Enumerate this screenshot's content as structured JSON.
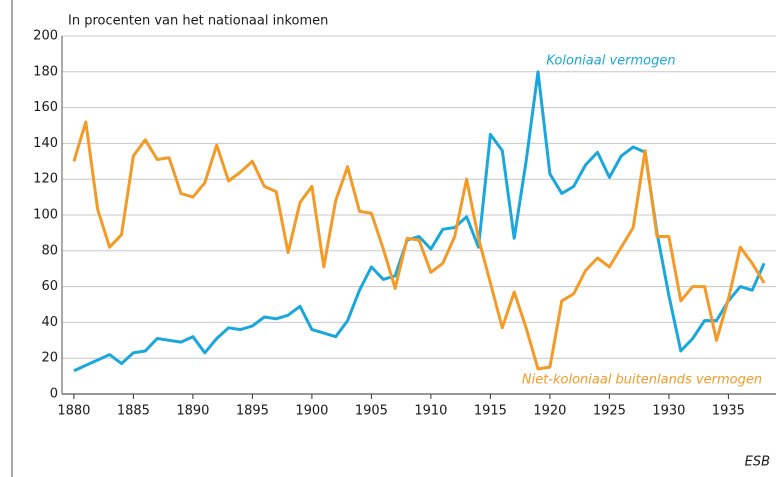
{
  "chart_data": {
    "type": "line",
    "title": "In procenten van het nationaal inkomen",
    "source": "ESB",
    "x": [
      1880,
      1881,
      1882,
      1883,
      1884,
      1885,
      1886,
      1887,
      1888,
      1889,
      1890,
      1891,
      1892,
      1893,
      1894,
      1895,
      1896,
      1897,
      1898,
      1899,
      1900,
      1901,
      1902,
      1903,
      1904,
      1905,
      1906,
      1907,
      1908,
      1909,
      1910,
      1911,
      1912,
      1913,
      1914,
      1915,
      1916,
      1917,
      1918,
      1919,
      1920,
      1921,
      1922,
      1923,
      1924,
      1925,
      1926,
      1927,
      1928,
      1929,
      1930,
      1931,
      1932,
      1933,
      1934,
      1935,
      1936,
      1937,
      1938
    ],
    "series": [
      {
        "name": "Koloniaal vermogen",
        "color": "#1aa7dd",
        "values": [
          13,
          16,
          19,
          22,
          17,
          23,
          24,
          31,
          30,
          29,
          32,
          23,
          31,
          37,
          36,
          38,
          43,
          42,
          44,
          49,
          36,
          34,
          32,
          41,
          58,
          71,
          64,
          66,
          86,
          88,
          81,
          92,
          93,
          99,
          82,
          145,
          136,
          87,
          130,
          180,
          123,
          112,
          116,
          128,
          135,
          121,
          133,
          138,
          135,
          90,
          55,
          24,
          31,
          41,
          41,
          52,
          60,
          58,
          73
        ]
      },
      {
        "name": "Niet-koloniaal buitenlands vermogen",
        "color": "#f39a27",
        "values": [
          130,
          152,
          103,
          82,
          89,
          133,
          142,
          131,
          132,
          112,
          110,
          118,
          139,
          119,
          124,
          130,
          116,
          113,
          79,
          107,
          116,
          71,
          108,
          127,
          102,
          101,
          81,
          59,
          87,
          86,
          68,
          73,
          88,
          120,
          87,
          62,
          37,
          57,
          37,
          14,
          15,
          52,
          56,
          69,
          76,
          71,
          82,
          93,
          136,
          88,
          88,
          52,
          60,
          60,
          30,
          53,
          82,
          73,
          62
        ]
      }
    ],
    "xlim": [
      1879,
      1939
    ],
    "xticks": [
      1880,
      1885,
      1890,
      1895,
      1900,
      1905,
      1910,
      1915,
      1920,
      1925,
      1930,
      1935
    ],
    "ylim": [
      0,
      200
    ],
    "yticks": [
      0,
      20,
      40,
      60,
      80,
      100,
      120,
      140,
      160,
      180,
      200
    ],
    "grid": true
  }
}
